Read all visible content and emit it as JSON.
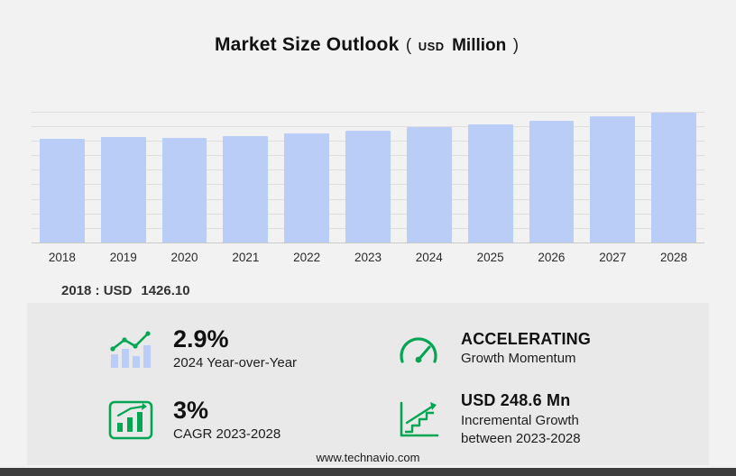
{
  "title": {
    "main": "Market Size Outlook",
    "paren_open": "(",
    "currency": "USD",
    "unit": "Million",
    "paren_close": ")"
  },
  "chart_data": {
    "type": "bar",
    "title": "Market Size Outlook (USD Million)",
    "categories": [
      "2018",
      "2019",
      "2020",
      "2021",
      "2022",
      "2023",
      "2024",
      "2025",
      "2026",
      "2027",
      "2028"
    ],
    "values": [
      1426.1,
      1444,
      1437,
      1459,
      1493,
      1535,
      1579.5,
      1628,
      1678,
      1730,
      1783.6
    ],
    "xlabel": "",
    "ylabel": "USD Million",
    "ylim": [
      0,
      1870
    ],
    "grid": true,
    "legend": "none",
    "bar_color": "#b9cdf6",
    "annotation": "2018 : USD 1426.10"
  },
  "annotation": {
    "label": "2018 : USD",
    "value": "1426.10"
  },
  "stats": [
    {
      "id": "yoy",
      "icon": "yoy-trend-icon",
      "value": "2.9%",
      "label": "2024 Year-over-Year"
    },
    {
      "id": "momentum",
      "icon": "speedometer-icon",
      "value": "ACCELERATING",
      "label": "Growth Momentum"
    },
    {
      "id": "cagr",
      "icon": "cagr-chart-icon",
      "value": "3%",
      "label": "CAGR 2023-2028"
    },
    {
      "id": "incremental",
      "icon": "incremental-growth-icon",
      "value": "USD 248.6 Mn",
      "label": "Incremental Growth between 2023-2028"
    }
  ],
  "footer": {
    "url": "www.technavio.com"
  },
  "colors": {
    "accent_green": "#00a651",
    "bar": "#b9cdf6",
    "panel": "#e9e9e9",
    "footer_bar": "#3d3d3d"
  }
}
